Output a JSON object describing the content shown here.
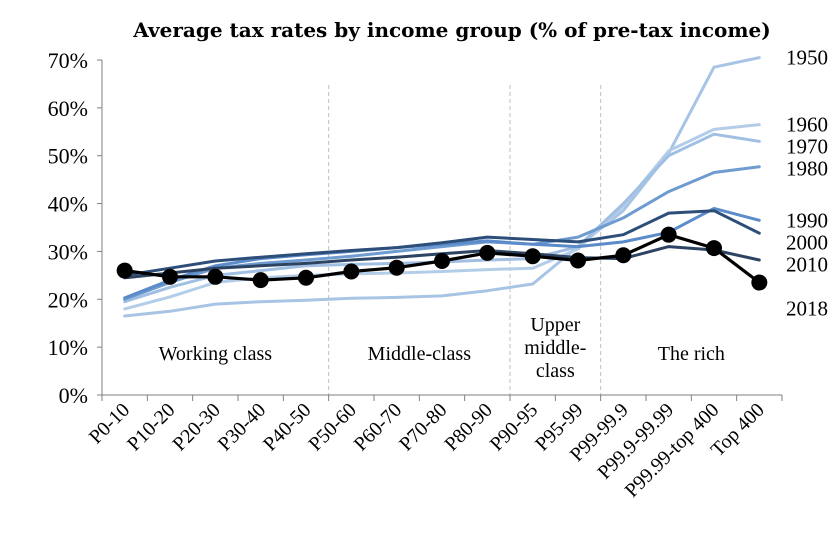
{
  "chart_data": {
    "type": "line",
    "title": "Average tax rates by income group (% of pre-tax income)",
    "xlabel": "",
    "ylabel": "",
    "ylim": [
      0,
      70
    ],
    "y_ticks": [
      "0%",
      "10%",
      "20%",
      "30%",
      "40%",
      "50%",
      "60%",
      "70%"
    ],
    "categories": [
      "P0-10",
      "P10-20",
      "P20-30",
      "P30-40",
      "P40-50",
      "P50-60",
      "P60-70",
      "P70-80",
      "P80-90",
      "P90-95",
      "P95-99",
      "P99-99.9",
      "P99.9-99.99",
      "P99.99-top 400",
      "Top 400"
    ],
    "group_dividers_after": [
      "P40-50",
      "P80-90",
      "P95-99"
    ],
    "group_labels": [
      {
        "lines": [
          "Working class"
        ]
      },
      {
        "lines": [
          "Middle-class"
        ]
      },
      {
        "lines": [
          "Upper",
          "middle-",
          "class"
        ]
      },
      {
        "lines": [
          "The rich"
        ]
      }
    ],
    "series": [
      {
        "name": "1950",
        "color": "#a8c4e5",
        "values": [
          16.5,
          17.5,
          19,
          19.5,
          19.8,
          20.2,
          20.4,
          20.7,
          21.8,
          23.2,
          31,
          38.5,
          50.5,
          68.5,
          70.5
        ]
      },
      {
        "name": "1960",
        "color": "#b3cde9",
        "values": [
          18,
          20.5,
          23.5,
          24.5,
          25,
          25.3,
          25.5,
          25.8,
          26.2,
          26.5,
          30.5,
          39.5,
          51,
          55.5,
          56.5
        ]
      },
      {
        "name": "1970",
        "color": "#a1bfe3",
        "values": [
          19.5,
          22.5,
          25,
          26,
          27,
          27.3,
          27.5,
          27.8,
          28.2,
          28.5,
          31,
          40,
          50,
          54.5,
          53
        ]
      },
      {
        "name": "1980",
        "color": "#6e9bd0",
        "values": [
          20,
          23.5,
          26.5,
          27.5,
          28.2,
          29,
          30,
          31,
          32,
          31.5,
          33,
          37,
          42.5,
          46.5,
          47.7
        ]
      },
      {
        "name": "1990",
        "color": "#5b8bc8",
        "values": [
          20.3,
          24,
          27,
          28.5,
          29.3,
          30,
          30.8,
          31.5,
          32.2,
          31.5,
          31,
          32,
          34,
          39,
          36.5
        ]
      },
      {
        "name": "2000",
        "color": "#2e4e7a",
        "values": [
          25,
          26.5,
          28,
          28.8,
          29.5,
          30.2,
          30.8,
          31.8,
          33,
          32.5,
          32,
          33.5,
          38,
          38.5,
          33.8
        ]
      },
      {
        "name": "2010",
        "color": "#2d4362",
        "values": [
          24.5,
          25.5,
          26.5,
          27,
          27.5,
          28.2,
          28.8,
          29.5,
          30.2,
          29.5,
          28.7,
          28.5,
          31,
          30.3,
          28.2
        ]
      },
      {
        "name": "2018",
        "color": "#000000",
        "values": [
          26,
          24.7,
          24.7,
          24,
          24.5,
          25.8,
          26.6,
          28,
          29.7,
          29,
          28.1,
          29.2,
          33.5,
          30.7,
          23.5
        ]
      }
    ]
  }
}
